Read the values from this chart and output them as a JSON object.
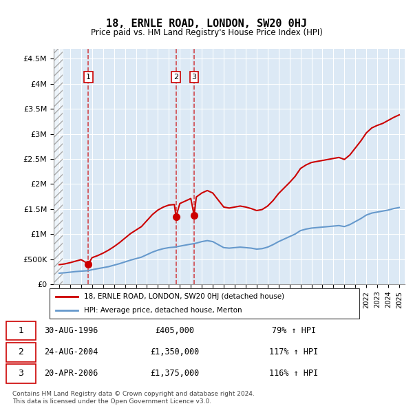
{
  "title": "18, ERNLE ROAD, LONDON, SW20 0HJ",
  "subtitle": "Price paid vs. HM Land Registry's House Price Index (HPI)",
  "sales": [
    {
      "num": 1,
      "date": "30-AUG-1996",
      "year": 1996.66,
      "price": 405000,
      "pct": "79%",
      "dir": "↑"
    },
    {
      "num": 2,
      "date": "24-AUG-2004",
      "year": 2004.65,
      "price": 1350000,
      "pct": "117%",
      "dir": "↑"
    },
    {
      "num": 3,
      "date": "20-APR-2006",
      "year": 2006.3,
      "price": 1375000,
      "pct": "116%",
      "dir": "↑"
    }
  ],
  "legend_label_red": "18, ERNLE ROAD, LONDON, SW20 0HJ (detached house)",
  "legend_label_blue": "HPI: Average price, detached house, Merton",
  "footer1": "Contains HM Land Registry data © Crown copyright and database right 2024.",
  "footer2": "This data is licensed under the Open Government Licence v3.0.",
  "red_color": "#cc0000",
  "blue_color": "#6699cc",
  "bg_color": "#dce9f5",
  "hatch_color": "#bbbbbb",
  "xlim_left": 1993.5,
  "xlim_right": 2025.5,
  "ylim_bottom": 0,
  "ylim_top": 4700000,
  "hpi_x": [
    1994,
    1994.5,
    1995,
    1995.5,
    1996,
    1996.66,
    1997,
    1997.5,
    1998,
    1998.5,
    1999,
    1999.5,
    2000,
    2000.5,
    2001,
    2001.5,
    2002,
    2002.5,
    2003,
    2003.5,
    2004,
    2004.5,
    2004.65,
    2005,
    2005.5,
    2006,
    2006.3,
    2006.5,
    2007,
    2007.5,
    2008,
    2008.5,
    2009,
    2009.5,
    2010,
    2010.5,
    2011,
    2011.5,
    2012,
    2012.5,
    2013,
    2013.5,
    2014,
    2014.5,
    2015,
    2015.5,
    2016,
    2016.5,
    2017,
    2017.5,
    2018,
    2018.5,
    2019,
    2019.5,
    2020,
    2020.5,
    2021,
    2021.5,
    2022,
    2022.5,
    2023,
    2023.5,
    2024,
    2024.5,
    2025
  ],
  "hpi_y": [
    220000,
    228000,
    240000,
    252000,
    260000,
    270000,
    290000,
    310000,
    330000,
    350000,
    380000,
    410000,
    445000,
    480000,
    510000,
    540000,
    590000,
    640000,
    680000,
    710000,
    730000,
    740000,
    745000,
    760000,
    780000,
    800000,
    810000,
    820000,
    850000,
    870000,
    850000,
    790000,
    730000,
    720000,
    730000,
    740000,
    730000,
    720000,
    700000,
    710000,
    740000,
    790000,
    850000,
    900000,
    950000,
    1000000,
    1070000,
    1100000,
    1120000,
    1130000,
    1140000,
    1150000,
    1160000,
    1170000,
    1150000,
    1190000,
    1250000,
    1310000,
    1380000,
    1420000,
    1440000,
    1460000,
    1480000,
    1510000,
    1530000
  ],
  "red_x": [
    1994,
    1994.5,
    1995,
    1995.5,
    1996,
    1996.66,
    1997,
    1997.5,
    1998,
    1998.5,
    1999,
    1999.5,
    2000,
    2000.5,
    2001,
    2001.5,
    2002,
    2002.5,
    2003,
    2003.5,
    2004,
    2004.5,
    2004.65,
    2005,
    2005.5,
    2006,
    2006.3,
    2006.5,
    2007,
    2007.5,
    2008,
    2008.5,
    2009,
    2009.5,
    2010,
    2010.5,
    2011,
    2011.5,
    2012,
    2012.5,
    2013,
    2013.5,
    2014,
    2014.5,
    2015,
    2015.5,
    2016,
    2016.5,
    2017,
    2017.5,
    2018,
    2018.5,
    2019,
    2019.5,
    2020,
    2020.5,
    2021,
    2021.5,
    2022,
    2022.5,
    2023,
    2023.5,
    2024,
    2024.5,
    2025
  ],
  "red_y": [
    390000,
    405000,
    430000,
    460000,
    490000,
    405000,
    530000,
    570000,
    620000,
    680000,
    750000,
    830000,
    920000,
    1010000,
    1080000,
    1150000,
    1270000,
    1390000,
    1480000,
    1540000,
    1580000,
    1590000,
    1350000,
    1610000,
    1660000,
    1710000,
    1375000,
    1740000,
    1820000,
    1870000,
    1820000,
    1680000,
    1540000,
    1520000,
    1540000,
    1560000,
    1540000,
    1510000,
    1470000,
    1490000,
    1560000,
    1670000,
    1810000,
    1920000,
    2030000,
    2150000,
    2310000,
    2380000,
    2430000,
    2450000,
    2470000,
    2490000,
    2510000,
    2530000,
    2490000,
    2580000,
    2720000,
    2860000,
    3020000,
    3120000,
    3170000,
    3210000,
    3270000,
    3330000,
    3380000
  ]
}
